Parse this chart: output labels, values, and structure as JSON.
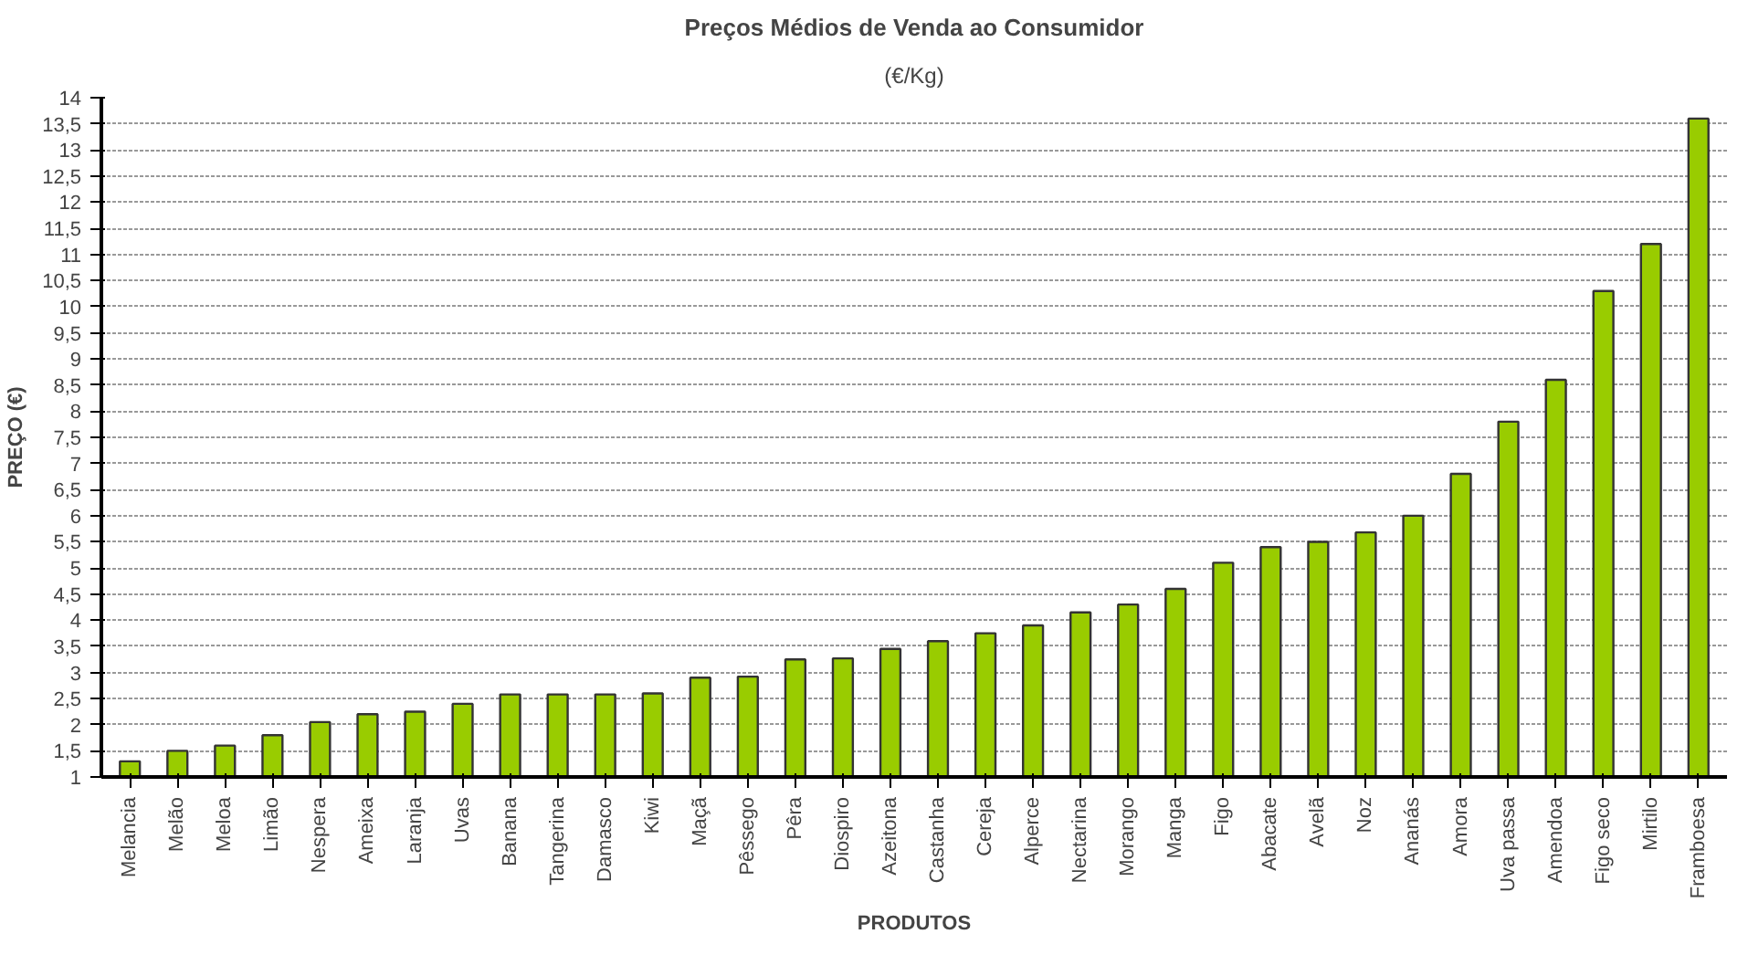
{
  "chart_data": {
    "type": "bar",
    "title": "Preços Médios de Venda ao Consumidor",
    "subtitle": "(€/Kg)",
    "xlabel": "PRODUTOS",
    "ylabel": "PREÇO (€)",
    "categories": [
      "Melancia",
      "Melão",
      "Meloa",
      "Limão",
      "Nespera",
      "Ameixa",
      "Laranja",
      "Uvas",
      "Banana",
      "Tangerina",
      "Damasco",
      "Kiwi",
      "Maçã",
      "Pêssego",
      "Pêra",
      "Diospiro",
      "Azeitona",
      "Castanha",
      "Cereja",
      "Alperce",
      "Nectarina",
      "Morango",
      "Manga",
      "Figo",
      "Abacate",
      "Avelã",
      "Noz",
      "Ananás",
      "Amora",
      "Uva passa",
      "Amendoa",
      "Figo seco",
      "Mirtilo",
      "Framboesa"
    ],
    "values": [
      1.3,
      1.5,
      1.6,
      1.8,
      2.05,
      2.2,
      2.25,
      2.4,
      2.58,
      2.58,
      2.58,
      2.6,
      2.9,
      2.92,
      3.25,
      3.27,
      3.45,
      3.6,
      3.75,
      3.9,
      4.15,
      4.3,
      4.6,
      5.1,
      5.4,
      5.5,
      5.68,
      6.0,
      6.8,
      7.8,
      8.6,
      10.3,
      11.2,
      13.6
    ],
    "color": "#99cc00",
    "ylim": [
      1,
      14
    ],
    "yticks": [
      1,
      {
        "value": 1.5,
        "label": "1,5"
      },
      2,
      {
        "value": 2.5,
        "label": "2,5"
      },
      3,
      {
        "value": 3.5,
        "label": "3,5"
      },
      4,
      {
        "value": 4.5,
        "label": "4,5"
      },
      5,
      {
        "value": 5.5,
        "label": "5,5"
      },
      6,
      {
        "value": 6.5,
        "label": "6,5"
      },
      7,
      {
        "value": 7.5,
        "label": "7,5"
      },
      8,
      {
        "value": 8.5,
        "label": "8,5"
      },
      9,
      {
        "value": 9.5,
        "label": "9,5"
      },
      10,
      {
        "value": 10.5,
        "label": "10,5"
      },
      11,
      {
        "value": 11.5,
        "label": "11,5"
      },
      12,
      {
        "value": 12.5,
        "label": "12,5"
      },
      13,
      {
        "value": 13.5,
        "label": "13,5"
      },
      14
    ],
    "grid": "y"
  }
}
